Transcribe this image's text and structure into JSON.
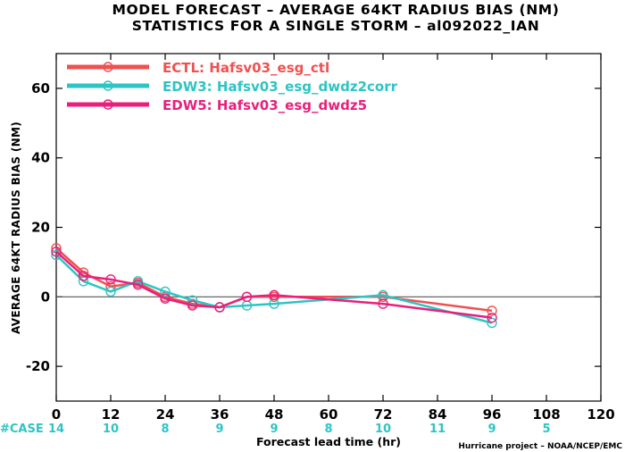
{
  "title_line1": "MODEL FORECAST – AVERAGE 64KT RADIUS BIAS (NM)",
  "title_line2": "STATISTICS FOR A SINGLE STORM – al092022_IAN",
  "credit": "Hurricane project – NOAA/NCEP/EMC",
  "case_label": "#CASE",
  "colors": {
    "case_count": "#2ec4c4",
    "zero_line": "#555555"
  },
  "chart_data": {
    "type": "line",
    "xlabel": "Forecast lead time (hr)",
    "ylabel": "AVERAGE 64KT RADIUS BIAS (NM)",
    "xlim": [
      0,
      120
    ],
    "ylim": [
      -30,
      70
    ],
    "xticks": [
      0,
      12,
      24,
      36,
      48,
      60,
      72,
      84,
      96,
      108,
      120
    ],
    "yticks": [
      -20,
      0,
      20,
      40,
      60
    ],
    "case_counts": [
      {
        "x": 0,
        "n": "14"
      },
      {
        "x": 12,
        "n": "10"
      },
      {
        "x": 24,
        "n": "8"
      },
      {
        "x": 36,
        "n": "9"
      },
      {
        "x": 48,
        "n": "9"
      },
      {
        "x": 60,
        "n": "8"
      },
      {
        "x": 72,
        "n": "10"
      },
      {
        "x": 84,
        "n": "11"
      },
      {
        "x": 96,
        "n": "9"
      },
      {
        "x": 108,
        "n": "5"
      }
    ],
    "series": [
      {
        "name": "ECTL: Hafsv03_esg_ctl",
        "color": "#f05050",
        "x": [
          0,
          6,
          12,
          18,
          24,
          30,
          36,
          42,
          48,
          72,
          96
        ],
        "y": [
          14,
          7,
          3,
          4,
          0,
          -2,
          -3,
          0,
          0,
          0,
          -4
        ]
      },
      {
        "name": "EDW3: Hafsv03_esg_dwdz2corr",
        "color": "#2ec4c4",
        "x": [
          0,
          6,
          12,
          18,
          24,
          30,
          36,
          42,
          48,
          72,
          96
        ],
        "y": [
          12,
          4.5,
          1.5,
          4.5,
          1.5,
          -1,
          -3,
          -2.5,
          -2,
          0.5,
          -7.5
        ]
      },
      {
        "name": "EDW5: Hafsv03_esg_dwdz5",
        "color": "#e8207c",
        "x": [
          0,
          6,
          12,
          18,
          24,
          30,
          36,
          42,
          48,
          72,
          96
        ],
        "y": [
          13,
          6,
          5,
          3.5,
          -0.5,
          -2.5,
          -3,
          0,
          0.5,
          -2,
          -6
        ]
      }
    ]
  }
}
